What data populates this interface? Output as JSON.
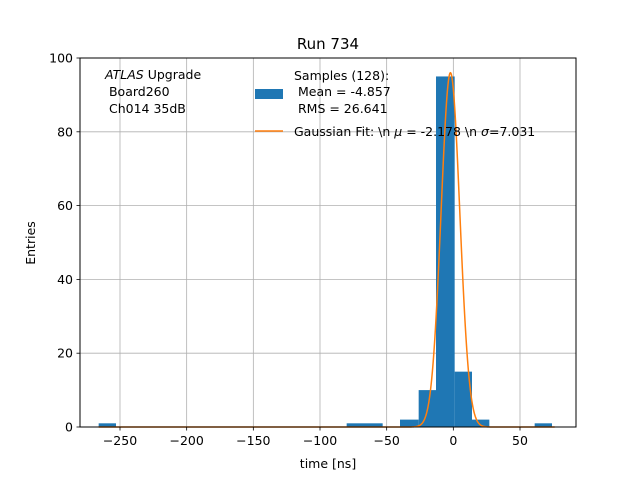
{
  "chart_data": {
    "type": "bar",
    "title": "Run 734",
    "xlabel": "time [ns]",
    "ylabel": "Entries",
    "xlim": [
      -280,
      92
    ],
    "ylim": [
      0,
      100
    ],
    "xticks": [
      -250,
      -200,
      -150,
      -100,
      -50,
      0,
      50
    ],
    "xtick_labels": [
      "−250",
      "−200",
      "−150",
      "−100",
      "−50",
      "0",
      "50"
    ],
    "yticks": [
      0,
      20,
      40,
      60,
      80,
      100
    ],
    "ytick_labels": [
      "0",
      "20",
      "40",
      "60",
      "80",
      "100"
    ],
    "grid": true,
    "legend_location": "top-right",
    "annotation": {
      "italic": "ATLAS",
      "upgrade": " Upgrade",
      "line2": " Board260",
      "line3": " Ch014 35dB"
    },
    "histogram": {
      "name_lines": [
        "Samples (128):",
        " Mean = -4.857",
        " RMS = 26.641"
      ],
      "color": "#1f77b4",
      "bins": [
        {
          "x0": -266,
          "x1": -253,
          "count": 1
        },
        {
          "x0": -80,
          "x1": -67,
          "count": 1
        },
        {
          "x0": -67,
          "x1": -53,
          "count": 1
        },
        {
          "x0": -40,
          "x1": -26,
          "count": 2
        },
        {
          "x0": -26,
          "x1": -13,
          "count": 10
        },
        {
          "x0": -13,
          "x1": 1,
          "count": 95
        },
        {
          "x0": 1,
          "x1": 14,
          "count": 15
        },
        {
          "x0": 14,
          "x1": 27,
          "count": 2
        },
        {
          "x0": 61,
          "x1": 74,
          "count": 1
        }
      ]
    },
    "fit": {
      "label_prefix": "Gaussian Fit: \\n ",
      "label_mu_symbol": "μ",
      "label_mid": " = -2.178 \\n ",
      "label_sigma_symbol": "σ",
      "label_suffix": "=7.031",
      "color": "#ff7f0e",
      "mu": -2.178,
      "sigma": 7.031,
      "amplitude": 96,
      "range": [
        -266,
        76
      ]
    }
  }
}
